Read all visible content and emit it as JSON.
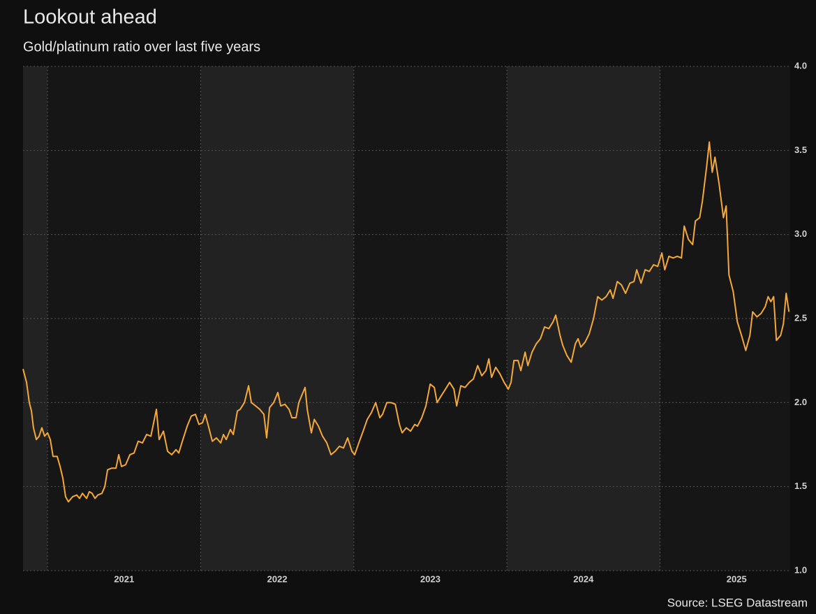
{
  "chart_data": {
    "type": "line",
    "title": "Lookout ahead",
    "subtitle": "Gold/platinum ratio over last five years",
    "source": "Source: LSEG Datastream",
    "x": [
      2020.84,
      2020.863,
      2020.881,
      2020.895,
      2020.908,
      2020.927,
      2020.945,
      2020.963,
      2020.981,
      2021.0,
      2021.018,
      2021.036,
      2021.063,
      2021.082,
      2021.1,
      2021.118,
      2021.136,
      2021.164,
      2021.191,
      2021.209,
      2021.228,
      2021.255,
      2021.273,
      2021.291,
      2021.31,
      2021.328,
      2021.355,
      2021.374,
      2021.392,
      2021.419,
      2021.447,
      2021.465,
      2021.483,
      2021.51,
      2021.538,
      2021.565,
      2021.592,
      2021.62,
      2021.647,
      2021.675,
      2021.711,
      2021.729,
      2021.757,
      2021.784,
      2021.811,
      2021.839,
      2021.857,
      2021.884,
      2021.912,
      2021.939,
      2021.966,
      2021.989,
      2022.012,
      2022.03,
      2022.048,
      2022.076,
      2022.103,
      2022.131,
      2022.149,
      2022.167,
      2022.194,
      2022.213,
      2022.24,
      2022.258,
      2022.286,
      2022.313,
      2022.331,
      2022.359,
      2022.386,
      2022.413,
      2022.431,
      2022.45,
      2022.477,
      2022.504,
      2022.523,
      2022.55,
      2022.577,
      2022.596,
      2022.623,
      2022.641,
      2022.659,
      2022.682,
      2022.696,
      2022.723,
      2022.742,
      2022.769,
      2022.796,
      2022.824,
      2022.851,
      2022.878,
      2022.906,
      2022.933,
      2022.96,
      2022.988,
      2023.006,
      2023.033,
      2023.061,
      2023.088,
      2023.115,
      2023.143,
      2023.17,
      2023.188,
      2023.216,
      2023.243,
      2023.271,
      2023.298,
      2023.316,
      2023.343,
      2023.371,
      2023.398,
      2023.416,
      2023.444,
      2023.471,
      2023.499,
      2023.526,
      2023.544,
      2023.571,
      2023.599,
      2023.626,
      2023.654,
      2023.672,
      2023.699,
      2023.727,
      2023.754,
      2023.781,
      2023.809,
      2023.836,
      2023.863,
      2023.882,
      2023.9,
      2023.927,
      2023.955,
      2023.982,
      2024.009,
      2024.027,
      2024.046,
      2024.073,
      2024.091,
      2024.119,
      2024.137,
      2024.164,
      2024.192,
      2024.219,
      2024.246,
      2024.274,
      2024.301,
      2024.319,
      2024.347,
      2024.365,
      2024.392,
      2024.42,
      2024.447,
      2024.465,
      2024.483,
      2024.511,
      2024.538,
      2024.566,
      2024.593,
      2024.62,
      2024.648,
      2024.675,
      2024.693,
      2024.721,
      2024.748,
      2024.775,
      2024.803,
      2024.83,
      2024.848,
      2024.876,
      2024.903,
      2024.93,
      2024.958,
      2024.985,
      2025.012,
      2025.031,
      2025.058,
      2025.085,
      2025.113,
      2025.14,
      2025.158,
      2025.186,
      2025.213,
      2025.231,
      2025.259,
      2025.277,
      2025.304,
      2025.322,
      2025.341,
      2025.359,
      2025.386,
      2025.414,
      2025.432,
      2025.45,
      2025.478,
      2025.505,
      2025.532,
      2025.56,
      2025.587,
      2025.605,
      2025.633,
      2025.66,
      2025.687,
      2025.706,
      2025.724,
      2025.742,
      2025.76,
      2025.788,
      2025.806,
      2025.824,
      2025.842
    ],
    "series": [
      {
        "name": "Gold/platinum ratio",
        "color": "#f5a93a",
        "values": [
          2.2,
          2.12,
          2.0,
          1.95,
          1.85,
          1.78,
          1.8,
          1.85,
          1.8,
          1.82,
          1.78,
          1.68,
          1.68,
          1.62,
          1.55,
          1.44,
          1.41,
          1.44,
          1.45,
          1.43,
          1.46,
          1.43,
          1.47,
          1.46,
          1.43,
          1.45,
          1.46,
          1.5,
          1.6,
          1.61,
          1.61,
          1.69,
          1.62,
          1.63,
          1.69,
          1.7,
          1.77,
          1.76,
          1.81,
          1.8,
          1.96,
          1.78,
          1.83,
          1.71,
          1.69,
          1.72,
          1.7,
          1.78,
          1.86,
          1.92,
          1.93,
          1.87,
          1.88,
          1.93,
          1.87,
          1.77,
          1.79,
          1.76,
          1.81,
          1.78,
          1.84,
          1.81,
          1.95,
          1.96,
          2.0,
          2.1,
          2.0,
          1.98,
          1.96,
          1.93,
          1.79,
          1.97,
          2.0,
          2.06,
          1.98,
          1.99,
          1.96,
          1.91,
          1.91,
          2.0,
          2.04,
          2.09,
          1.96,
          1.82,
          1.9,
          1.86,
          1.8,
          1.76,
          1.69,
          1.71,
          1.74,
          1.73,
          1.79,
          1.71,
          1.69,
          1.76,
          1.83,
          1.9,
          1.94,
          2.0,
          1.91,
          1.93,
          2.0,
          2.0,
          1.99,
          1.87,
          1.82,
          1.85,
          1.83,
          1.87,
          1.86,
          1.91,
          1.98,
          2.11,
          2.09,
          2.0,
          2.04,
          2.08,
          2.12,
          2.08,
          1.98,
          2.1,
          2.09,
          2.12,
          2.14,
          2.22,
          2.16,
          2.19,
          2.26,
          2.15,
          2.21,
          2.17,
          2.12,
          2.08,
          2.12,
          2.25,
          2.25,
          2.19,
          2.3,
          2.22,
          2.3,
          2.35,
          2.38,
          2.45,
          2.44,
          2.48,
          2.52,
          2.4,
          2.34,
          2.28,
          2.24,
          2.35,
          2.38,
          2.33,
          2.36,
          2.41,
          2.5,
          2.63,
          2.61,
          2.63,
          2.67,
          2.62,
          2.72,
          2.7,
          2.65,
          2.71,
          2.72,
          2.79,
          2.71,
          2.79,
          2.78,
          2.82,
          2.81,
          2.89,
          2.79,
          2.87,
          2.86,
          2.87,
          2.86,
          3.05,
          2.97,
          2.94,
          3.08,
          3.1,
          3.2,
          3.4,
          3.55,
          3.37,
          3.46,
          3.3,
          3.1,
          3.17,
          2.76,
          2.66,
          2.48,
          2.4,
          2.31,
          2.4,
          2.54,
          2.51,
          2.53,
          2.57,
          2.63,
          2.6,
          2.63,
          2.37,
          2.4,
          2.47,
          2.65,
          2.54
        ]
      }
    ],
    "xlim": [
      2020.84,
      2025.85
    ],
    "xticks": [
      {
        "value": 2021.5,
        "label": "2021"
      },
      {
        "value": 2022.5,
        "label": "2022"
      },
      {
        "value": 2023.5,
        "label": "2023"
      },
      {
        "value": 2024.5,
        "label": "2024"
      },
      {
        "value": 2025.5,
        "label": "2025"
      }
    ],
    "ylim": [
      1.0,
      4.0
    ],
    "yticks": [
      {
        "value": 1.0,
        "label": "1.0"
      },
      {
        "value": 1.5,
        "label": "1.5"
      },
      {
        "value": 2.0,
        "label": "2.0"
      },
      {
        "value": 2.5,
        "label": "2.5"
      },
      {
        "value": 3.0,
        "label": "3.0"
      },
      {
        "value": 3.5,
        "label": "3.5"
      },
      {
        "value": 4.0,
        "label": "4.0"
      }
    ],
    "grid": true
  }
}
